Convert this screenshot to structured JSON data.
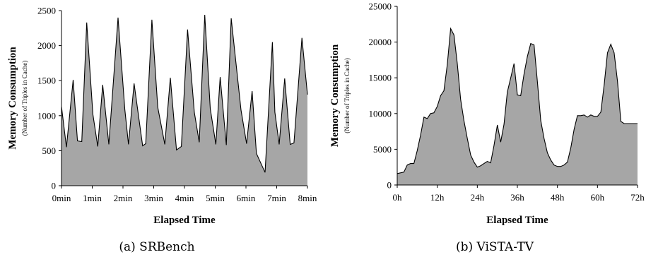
{
  "chart_data": [
    {
      "type": "area",
      "caption": "(a) SRBench",
      "xlabel": "Elapsed Time",
      "ylabel": "Memory Consumption",
      "ylabel_sub": "(Number of Triples in Cache)",
      "xlim": [
        0,
        8
      ],
      "ylim": [
        0,
        2500
      ],
      "yticks": [
        0,
        500,
        1000,
        1500,
        2000,
        2500
      ],
      "xticks": [
        0,
        1,
        2,
        3,
        4,
        5,
        6,
        7,
        8
      ],
      "xtick_labels": [
        "0min",
        "1min",
        "2min",
        "3min",
        "4min",
        "5min",
        "6min",
        "7min",
        "8min"
      ],
      "fill_color": "#a6a6a6",
      "x": [
        0,
        0.16,
        0.38,
        0.52,
        0.66,
        0.82,
        1.02,
        1.18,
        1.34,
        1.54,
        1.84,
        2.06,
        2.18,
        2.36,
        2.64,
        2.74,
        2.94,
        3.13,
        3.36,
        3.54,
        3.74,
        3.9,
        4.1,
        4.32,
        4.48,
        4.66,
        4.84,
        5.02,
        5.16,
        5.36,
        5.52,
        5.84,
        6.02,
        6.2,
        6.34,
        6.62,
        6.86,
        6.94,
        7.08,
        7.26,
        7.44,
        7.56,
        7.82,
        8.0
      ],
      "y": [
        1130,
        550,
        1510,
        640,
        630,
        2330,
        1020,
        560,
        1440,
        590,
        2400,
        1090,
        590,
        1460,
        570,
        600,
        2370,
        1120,
        590,
        1540,
        510,
        560,
        2230,
        1050,
        620,
        2440,
        1100,
        590,
        1550,
        580,
        2390,
        1080,
        600,
        1350,
        460,
        190,
        2050,
        1050,
        590,
        1530,
        590,
        610,
        2110,
        1300
      ]
    },
    {
      "type": "area",
      "caption": "(b) ViSTA-TV",
      "xlabel": "Elapsed Time",
      "ylabel": "Memory Consumption",
      "ylabel_sub": "(Number of Triples in Cache)",
      "xlim": [
        0,
        72
      ],
      "ylim": [
        0,
        25000
      ],
      "yticks": [
        0,
        5000,
        10000,
        15000,
        20000,
        25000
      ],
      "xticks": [
        0,
        12,
        24,
        36,
        48,
        60,
        72
      ],
      "xtick_labels": [
        "0h",
        "12h",
        "24h",
        "36h",
        "48h",
        "60h",
        "72h"
      ],
      "fill_color": "#a6a6a6",
      "x": [
        0,
        2,
        3,
        4,
        5,
        6,
        7,
        8,
        9,
        10,
        11,
        12,
        13,
        14,
        15,
        16,
        17,
        18,
        19,
        20,
        21,
        22,
        23,
        24,
        25,
        26,
        27,
        28,
        29,
        30,
        31,
        32,
        33,
        34,
        35,
        36,
        37,
        38,
        39,
        40,
        41,
        42,
        43,
        44,
        45,
        46,
        47,
        48,
        49,
        50,
        51,
        52,
        53,
        54,
        55,
        56,
        57,
        58,
        59,
        60,
        61,
        62,
        63,
        64,
        65,
        66,
        67,
        68,
        69,
        70,
        71,
        72
      ],
      "y": [
        1600,
        1800,
        2800,
        3000,
        3000,
        4800,
        7000,
        9500,
        9300,
        10000,
        10100,
        11000,
        12500,
        13200,
        16800,
        21900,
        21000,
        17000,
        12000,
        9000,
        6500,
        4200,
        3200,
        2500,
        2700,
        3000,
        3300,
        3100,
        5500,
        8400,
        6000,
        8500,
        13000,
        15000,
        17000,
        12600,
        12500,
        15500,
        18000,
        19800,
        19600,
        14500,
        9000,
        6500,
        4500,
        3500,
        2800,
        2600,
        2600,
        2800,
        3200,
        5200,
        7800,
        9700,
        9700,
        9800,
        9500,
        9800,
        9600,
        9600,
        10200,
        14000,
        18500,
        19700,
        18500,
        14500,
        8900,
        8600,
        8600,
        8600,
        8600,
        8600
      ]
    }
  ]
}
